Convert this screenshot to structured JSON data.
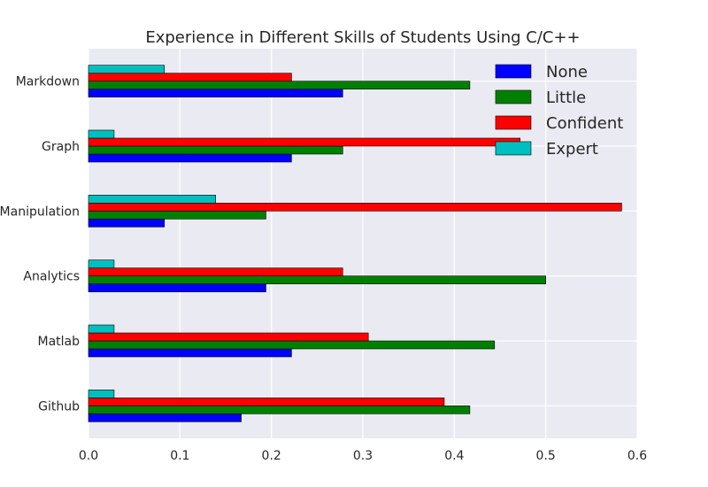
{
  "chart_data": {
    "type": "bar",
    "orientation": "horizontal",
    "title": "Experience in Different Skills of Students Using C/C++",
    "xlabel": "",
    "ylabel": "",
    "xlim": [
      0,
      0.6
    ],
    "x_ticks": [
      "0.0",
      "0.1",
      "0.2",
      "0.3",
      "0.4",
      "0.5",
      "0.6"
    ],
    "categories": [
      "Github",
      "Matlab",
      "Analytics",
      "Manipulation",
      "Graph",
      "Markdown"
    ],
    "series": [
      {
        "name": "None",
        "color": "#0000ff",
        "values": [
          0.167,
          0.222,
          0.194,
          0.083,
          0.222,
          0.278
        ]
      },
      {
        "name": "Little",
        "color": "#008000",
        "values": [
          0.417,
          0.444,
          0.5,
          0.194,
          0.278,
          0.417
        ]
      },
      {
        "name": "Confident",
        "color": "#ff0000",
        "values": [
          0.389,
          0.306,
          0.278,
          0.583,
          0.472,
          0.222
        ]
      },
      {
        "name": "Expert",
        "color": "#00bfbf",
        "values": [
          0.028,
          0.028,
          0.028,
          0.139,
          0.028,
          0.083
        ]
      }
    ],
    "grid": true,
    "legend_position": "top-right",
    "background": "#eaeaf2"
  }
}
